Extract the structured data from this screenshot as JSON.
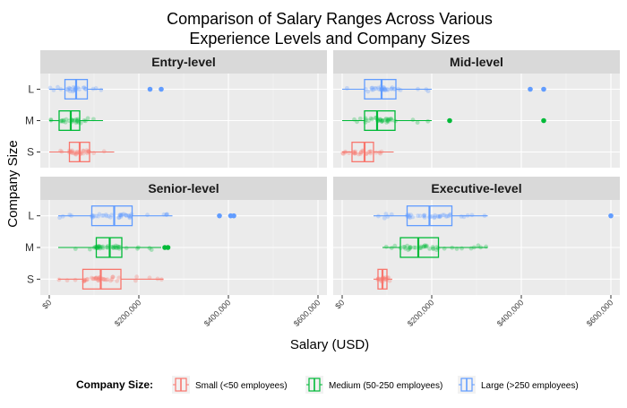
{
  "chart_data": {
    "type": "boxplot",
    "title": "Comparison of Salary Ranges Across Various Experience Levels and Company Sizes",
    "title_lines": [
      "Comparison of Salary Ranges Across Various",
      "Experience Levels and Company Sizes"
    ],
    "xlabel": "Salary (USD)",
    "ylabel": "Company Size",
    "categories": [
      "S",
      "M",
      "L"
    ],
    "x_ticks": [
      0,
      200000,
      400000,
      600000
    ],
    "x_tick_labels": [
      "$0",
      "$200,000",
      "$400,000",
      "$600,000"
    ],
    "xlim": [
      -20000,
      620000
    ],
    "grid": true,
    "legend": {
      "title": "Company Size:",
      "position": "bottom",
      "items": [
        {
          "key": "S",
          "label": "Small (<50 employees)",
          "color": "#F8766D"
        },
        {
          "key": "M",
          "label": "Medium (50-250 employees)",
          "color": "#00BA38"
        },
        {
          "key": "L",
          "label": "Large (>250 employees)",
          "color": "#619CFF"
        }
      ]
    },
    "panels": [
      {
        "title": "Entry-level",
        "boxes": {
          "S": {
            "whisker_low": 0,
            "q1": 45000,
            "median": 68000,
            "q3": 90000,
            "whisker_high": 145000,
            "outliers": []
          },
          "M": {
            "whisker_low": 0,
            "q1": 22000,
            "median": 48000,
            "q3": 68000,
            "whisker_high": 120000,
            "outliers": []
          },
          "L": {
            "whisker_low": 0,
            "q1": 35000,
            "median": 60000,
            "q3": 85000,
            "whisker_high": 120000,
            "outliers": [
              225000,
              250000
            ]
          }
        }
      },
      {
        "title": "Mid-level",
        "boxes": {
          "S": {
            "whisker_low": 0,
            "q1": 22000,
            "median": 50000,
            "q3": 70000,
            "whisker_high": 115000,
            "outliers": []
          },
          "M": {
            "whisker_low": 0,
            "q1": 50000,
            "median": 78000,
            "q3": 118000,
            "whisker_high": 200000,
            "outliers": [
              240000,
              450000
            ]
          },
          "L": {
            "whisker_low": 0,
            "q1": 50000,
            "median": 88000,
            "q3": 120000,
            "whisker_high": 200000,
            "outliers": [
              420000,
              450000
            ]
          }
        }
      },
      {
        "title": "Senior-level",
        "boxes": {
          "S": {
            "whisker_low": 20000,
            "q1": 75000,
            "median": 115000,
            "q3": 160000,
            "whisker_high": 255000,
            "outliers": []
          },
          "M": {
            "whisker_low": 20000,
            "q1": 105000,
            "median": 135000,
            "q3": 162000,
            "whisker_high": 250000,
            "outliers": [
              258000,
              265000
            ]
          },
          "L": {
            "whisker_low": 20000,
            "q1": 95000,
            "median": 145000,
            "q3": 185000,
            "whisker_high": 275000,
            "outliers": [
              380000,
              405000,
              412000
            ]
          }
        }
      },
      {
        "title": "Executive-level",
        "boxes": {
          "S": {
            "whisker_low": 70000,
            "q1": 80000,
            "median": 90000,
            "q3": 100000,
            "whisker_high": 112000,
            "outliers": []
          },
          "M": {
            "whisker_low": 90000,
            "q1": 130000,
            "median": 170000,
            "q3": 215000,
            "whisker_high": 325000,
            "outliers": []
          },
          "L": {
            "whisker_low": 70000,
            "q1": 145000,
            "median": 195000,
            "q3": 245000,
            "whisker_high": 325000,
            "outliers": [
              600000
            ]
          }
        }
      }
    ]
  }
}
